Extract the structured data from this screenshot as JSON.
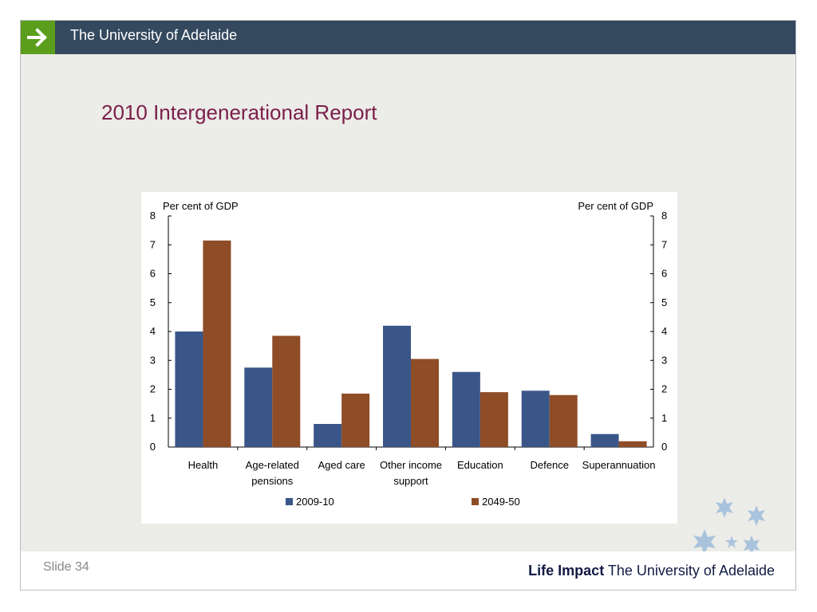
{
  "header": {
    "university": "The University of Adelaide"
  },
  "slide": {
    "title": "2010 Intergenerational Report",
    "number_label": "Slide 34"
  },
  "footer": {
    "brand_bold": "Life Impact",
    "brand_rest": "The University of Adelaide"
  },
  "colors": {
    "header_bg": "#34495e",
    "arrow_bg": "#5a9e1c",
    "title": "#7b1e4a",
    "series_2009": "#3a5688",
    "series_2049": "#8e4c27",
    "stars": "#a9c3dd"
  },
  "icons": {
    "header_arrow": "arrow-right-icon",
    "decoration": "star-icon"
  },
  "chart_data": {
    "type": "bar",
    "ylabel_left": "Per cent of GDP",
    "ylabel_right": "Per cent of GDP",
    "ylim": [
      0,
      8
    ],
    "yticks": [
      "0",
      "1",
      "2",
      "3",
      "4",
      "5",
      "6",
      "7",
      "8"
    ],
    "categories": [
      [
        "Health"
      ],
      [
        "Age-related",
        "pensions"
      ],
      [
        "Aged care"
      ],
      [
        "Other income",
        "support"
      ],
      [
        "Education"
      ],
      [
        "Defence"
      ],
      [
        "Superannuation"
      ]
    ],
    "series": [
      {
        "name": "2009-10",
        "values": [
          4.0,
          2.75,
          0.8,
          4.2,
          2.6,
          1.95,
          0.45
        ]
      },
      {
        "name": "2049-50",
        "values": [
          7.15,
          3.85,
          1.85,
          3.05,
          1.9,
          1.8,
          0.2
        ]
      }
    ],
    "legend_position": "bottom",
    "grid": false
  }
}
